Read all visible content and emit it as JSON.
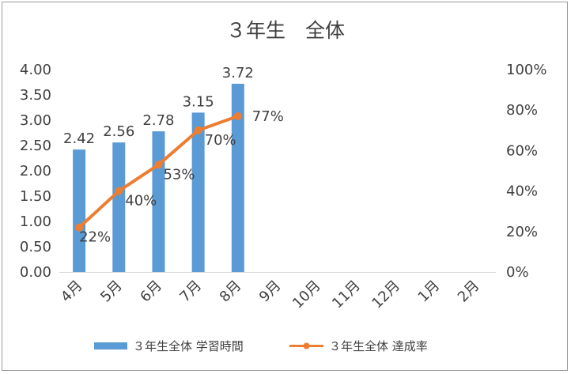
{
  "chart_data": {
    "type": "bar+line",
    "title": "３年生　全体",
    "categories": [
      "4月",
      "5月",
      "6月",
      "7月",
      "8月",
      "9月",
      "10月",
      "11月",
      "12月",
      "1月",
      "2月"
    ],
    "series": [
      {
        "name": "３年生全体 学習時間",
        "type": "bar",
        "axis": "left",
        "color": "#5b9bd5",
        "values": [
          2.42,
          2.56,
          2.78,
          3.15,
          3.72,
          null,
          null,
          null,
          null,
          null,
          null
        ],
        "labels": [
          "2.42",
          "2.56",
          "2.78",
          "3.15",
          "3.72"
        ]
      },
      {
        "name": "３年生全体 達成率",
        "type": "line",
        "axis": "right",
        "color": "#ed7d31",
        "values": [
          0.22,
          0.4,
          0.53,
          0.7,
          0.77,
          null,
          null,
          null,
          null,
          null,
          null
        ],
        "labels": [
          "22%",
          "40%",
          "53%",
          "70%",
          "77%"
        ]
      }
    ],
    "y_left": {
      "range": [
        0,
        4
      ],
      "ticks": [
        0,
        0.5,
        1,
        1.5,
        2,
        2.5,
        3,
        3.5,
        4
      ],
      "tick_labels": [
        "0.00",
        "0.50",
        "1.00",
        "1.50",
        "2.00",
        "2.50",
        "3.00",
        "3.50",
        "4.00"
      ]
    },
    "y_right": {
      "range": [
        0,
        1
      ],
      "ticks": [
        0,
        0.2,
        0.4,
        0.6,
        0.8,
        1
      ],
      "tick_labels": [
        "0%",
        "20%",
        "40%",
        "60%",
        "80%",
        "100%"
      ]
    },
    "grid": false,
    "legend_position": "bottom"
  }
}
